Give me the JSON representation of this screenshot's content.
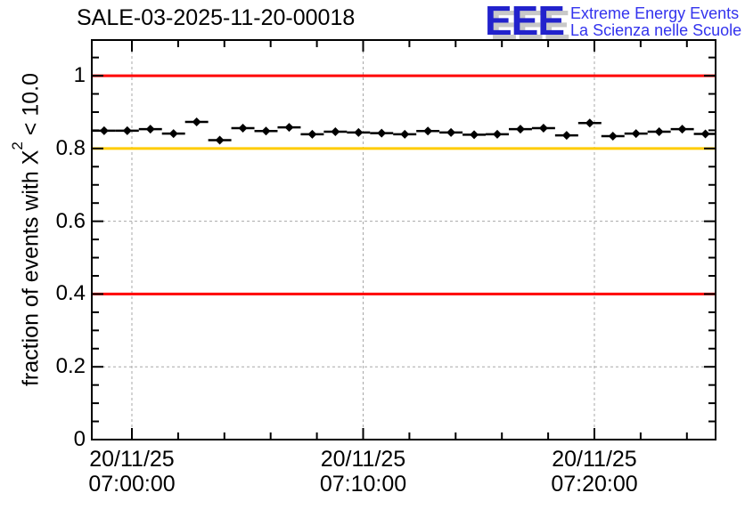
{
  "title": "SALE-03-2025-11-20-00018",
  "logo": {
    "acronym": "EEE",
    "line1": "Extreme Energy Events",
    "line2": "La Scienza nelle Scuole",
    "acronym_color": "#2222cc",
    "shadow_color": "#c8c8c8",
    "text_color": "#3333ee"
  },
  "chart_data": {
    "type": "scatter",
    "title": "SALE-03-2025-11-20-00018",
    "ylabel_prefix": "fraction of events with X",
    "ylabel_sup": "2",
    "ylabel_suffix": " < 10.0",
    "x_axis_unit": "minutes relative to 20/11/25 07:00:00",
    "points": {
      "x_minutes": [
        -1.2,
        -0.2,
        0.8,
        1.8,
        2.8,
        3.8,
        4.8,
        5.8,
        6.8,
        7.8,
        8.8,
        9.8,
        10.8,
        11.8,
        12.8,
        13.8,
        14.8,
        15.8,
        16.8,
        17.8,
        18.8,
        19.8,
        20.8,
        21.8,
        22.8,
        23.8,
        24.8
      ],
      "y": [
        0.849,
        0.849,
        0.853,
        0.841,
        0.873,
        0.823,
        0.856,
        0.848,
        0.858,
        0.839,
        0.846,
        0.844,
        0.842,
        0.839,
        0.848,
        0.844,
        0.838,
        0.839,
        0.853,
        0.856,
        0.836,
        0.87,
        0.834,
        0.841,
        0.846,
        0.853,
        0.84
      ]
    },
    "x_error_halfwidth_minutes": 0.5,
    "xlim_minutes": [
      -1.734,
      25.241
    ],
    "ylim": [
      0,
      1.098
    ],
    "x_major_ticks": [
      {
        "minutes": 0,
        "date": "20/11/25",
        "time": "07:00:00"
      },
      {
        "minutes": 10,
        "date": "20/11/25",
        "time": "07:10:00"
      },
      {
        "minutes": 20,
        "date": "20/11/25",
        "time": "07:20:00"
      }
    ],
    "x_minor_step_minutes": 2,
    "y_major_ticks": [
      {
        "value": 1,
        "label": "1"
      },
      {
        "value": 0.8,
        "label": "0.8"
      },
      {
        "value": 0.6,
        "label": "0.6"
      },
      {
        "value": 0.4,
        "label": "0.4"
      },
      {
        "value": 0.2,
        "label": "0.2"
      },
      {
        "value": 0,
        "label": "0"
      }
    ],
    "y_minor_step": 0.05,
    "reference_lines": [
      {
        "y": 1.0,
        "color": "#ff0000"
      },
      {
        "y": 0.8,
        "color": "#ffcc00"
      },
      {
        "y": 0.4,
        "color": "#ff0000"
      }
    ],
    "grid": {
      "show": true,
      "style": "dashed",
      "color": "#a8a8a8"
    },
    "marker": {
      "shape": "diamond",
      "color": "#000000"
    },
    "legend_position": "none"
  }
}
